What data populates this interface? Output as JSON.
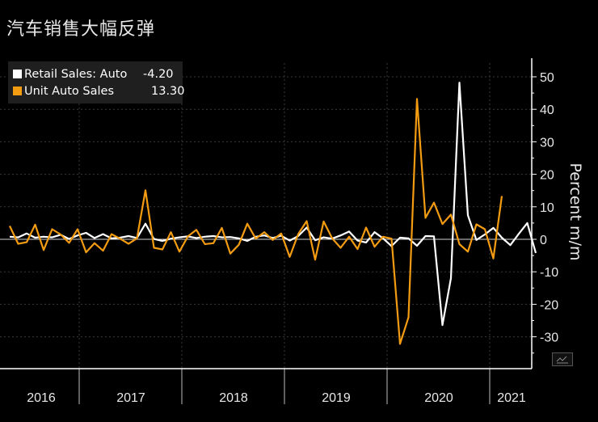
{
  "title": "汽车销售大幅反弹",
  "colors": {
    "retail": "#ffffff",
    "unit": "#f39c12",
    "grid": "#3a3a3a",
    "axis": "#ffffff",
    "zero": "#cfcfcf"
  },
  "chart_data": {
    "type": "line",
    "ylabel": "Percent m/m",
    "ylim": [
      -40,
      55
    ],
    "yticks": [
      -30,
      -20,
      -10,
      0,
      10,
      20,
      30,
      40,
      50
    ],
    "year_labels": [
      "2016",
      "2017",
      "2018",
      "2019",
      "2020",
      "2021"
    ],
    "x_start": "2016-01",
    "legend": {
      "position": "top-left"
    },
    "series": [
      {
        "name": "Retail Sales: Auto",
        "last_value": "-4.20",
        "color": "#ffffff",
        "values": [
          0.8,
          0.6,
          1.8,
          0.5,
          0.8,
          0.6,
          1.4,
          0.1,
          1.2,
          2.0,
          0.4,
          1.6,
          0.3,
          0.5,
          1.0,
          0.4,
          4.8,
          0.1,
          -0.5,
          0.2,
          0.6,
          0.9,
          0.4,
          0.8,
          1.0,
          0.6,
          0.7,
          0.3,
          -0.5,
          0.8,
          1.2,
          0.4,
          1.1,
          -0.4,
          1.0,
          3.6,
          -0.3,
          0.6,
          0.2,
          1.2,
          2.4,
          -0.4,
          -1.0,
          2.2,
          0.3,
          -2.1,
          0.5,
          0.3,
          -2.0,
          1.0,
          0.9,
          -26.4,
          -12.0,
          48.2,
          7.4,
          -0.2,
          1.5,
          3.5,
          0.5,
          -1.8,
          1.7,
          5.0,
          -4.2
        ]
      },
      {
        "name": "Unit Auto Sales",
        "last_value": "13.30",
        "color": "#f39c12",
        "values": [
          4.1,
          -1.4,
          -0.9,
          4.5,
          -3.3,
          3.1,
          1.5,
          -1.1,
          3.1,
          -4.0,
          -1.2,
          -3.5,
          1.6,
          0.2,
          -1.4,
          0.3,
          15.1,
          -2.6,
          -3.1,
          2.2,
          -3.8,
          0.9,
          2.9,
          -1.5,
          -1.2,
          3.5,
          -4.4,
          -1.7,
          4.8,
          0.2,
          2.2,
          -0.2,
          1.8,
          -5.4,
          1.6,
          5.6,
          -6.3,
          5.5,
          0.3,
          -2.6,
          0.8,
          -3.0,
          3.6,
          -2.3,
          0.8,
          0.2,
          -32.2,
          -24.0,
          43.2,
          6.6,
          11.3,
          4.7,
          7.6,
          -1.5,
          -3.8,
          4.6,
          3.1,
          -5.9,
          13.3
        ]
      }
    ]
  }
}
